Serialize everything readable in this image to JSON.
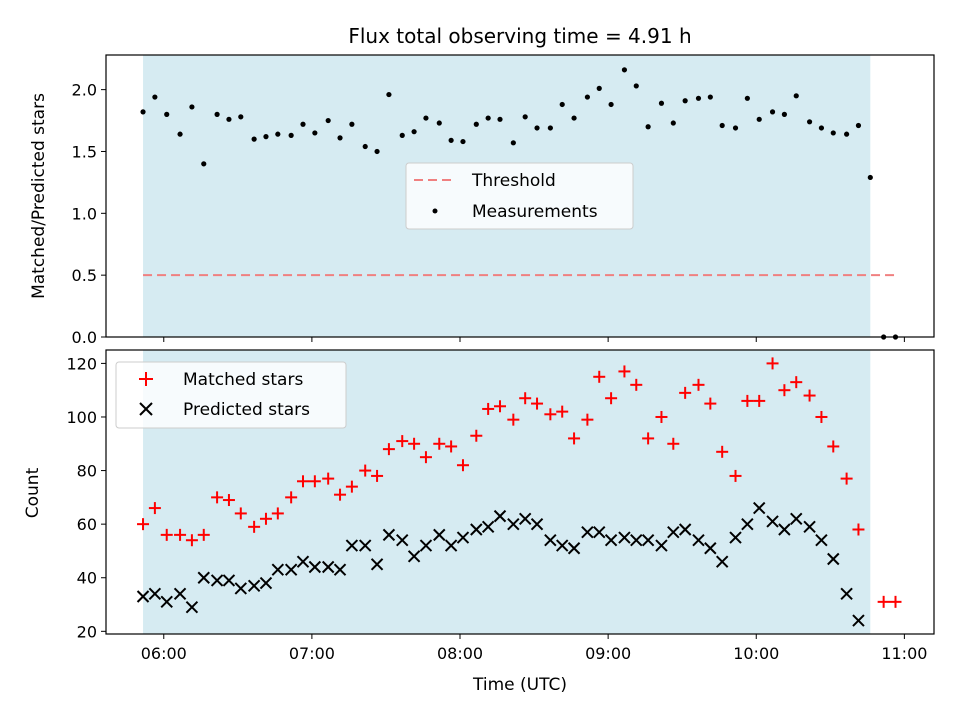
{
  "chart_data": {
    "title": "Flux total observing time = 4.91 h",
    "xlabel": "Time (UTC)",
    "x_unit": "hours UTC",
    "xlim": [
      5.61,
      11.2
    ],
    "x_ticks": [
      6,
      7,
      8,
      9,
      10,
      11
    ],
    "x_tick_labels": [
      "06:00",
      "07:00",
      "08:00",
      "09:00",
      "10:00",
      "11:00"
    ],
    "observing_window": [
      5.86,
      10.77
    ],
    "colors": {
      "shade": "#add8e6",
      "threshold": "#f08080",
      "measurements": "#000000",
      "matched": "#ff0000",
      "predicted": "#000000"
    },
    "panels": [
      {
        "type": "scatter",
        "ylabel": "Matched/Predicted stars",
        "ylim": [
          0.0,
          2.28
        ],
        "y_ticks": [
          0.0,
          0.5,
          1.0,
          1.5,
          2.0
        ],
        "y_tick_labels": [
          "0.0",
          "0.5",
          "1.0",
          "1.5",
          "2.0"
        ],
        "legend_position": "center",
        "legend": [
          "Threshold",
          "Measurements"
        ],
        "threshold": {
          "name": "Threshold",
          "value": 0.5,
          "x_range": [
            5.86,
            10.95
          ]
        },
        "measurements": {
          "name": "Measurements",
          "x": [
            5.86,
            5.94,
            6.02,
            6.11,
            6.19,
            6.27,
            6.36,
            6.44,
            6.52,
            6.61,
            6.69,
            6.77,
            6.86,
            6.94,
            7.02,
            7.11,
            7.19,
            7.27,
            7.36,
            7.44,
            7.52,
            7.61,
            7.69,
            7.77,
            7.86,
            7.94,
            8.02,
            8.11,
            8.19,
            8.27,
            8.36,
            8.44,
            8.52,
            8.61,
            8.69,
            8.77,
            8.86,
            8.94,
            9.02,
            9.11,
            9.19,
            9.27,
            9.36,
            9.44,
            9.52,
            9.61,
            9.69,
            9.77,
            9.86,
            9.94,
            10.02,
            10.11,
            10.19,
            10.27,
            10.36,
            10.44,
            10.52,
            10.61,
            10.69,
            10.77,
            10.86,
            10.94
          ],
          "y": [
            1.82,
            1.94,
            1.8,
            1.64,
            1.86,
            1.4,
            1.8,
            1.76,
            1.78,
            1.6,
            1.62,
            1.64,
            1.63,
            1.72,
            1.65,
            1.75,
            1.61,
            1.72,
            1.54,
            1.5,
            1.96,
            1.63,
            1.66,
            1.77,
            1.73,
            1.59,
            1.58,
            1.72,
            1.77,
            1.76,
            1.57,
            1.78,
            1.69,
            1.69,
            1.88,
            1.77,
            1.94,
            2.01,
            1.88,
            2.16,
            2.03,
            1.7,
            1.89,
            1.73,
            1.91,
            1.93,
            1.94,
            1.71,
            1.69,
            1.93,
            1.76,
            1.82,
            1.8,
            1.95,
            1.74,
            1.69,
            1.65,
            1.64,
            1.71,
            1.29,
            0.0,
            0.0
          ]
        }
      },
      {
        "type": "scatter",
        "ylabel": "Count",
        "ylim": [
          19,
          125
        ],
        "y_ticks": [
          20,
          40,
          60,
          80,
          100,
          120
        ],
        "y_tick_labels": [
          "20",
          "40",
          "60",
          "80",
          "100",
          "120"
        ],
        "legend_position": "upper-left",
        "legend": [
          "Matched stars",
          "Predicted stars"
        ],
        "series": [
          {
            "name": "Matched stars",
            "marker": "+",
            "x": [
              5.86,
              5.94,
              6.02,
              6.11,
              6.19,
              6.27,
              6.36,
              6.44,
              6.52,
              6.61,
              6.69,
              6.77,
              6.86,
              6.94,
              7.02,
              7.11,
              7.19,
              7.27,
              7.36,
              7.44,
              7.52,
              7.61,
              7.69,
              7.77,
              7.86,
              7.94,
              8.02,
              8.11,
              8.19,
              8.27,
              8.36,
              8.44,
              8.52,
              8.61,
              8.69,
              8.77,
              8.86,
              8.94,
              9.02,
              9.11,
              9.19,
              9.27,
              9.36,
              9.44,
              9.52,
              9.61,
              9.69,
              9.77,
              9.86,
              9.94,
              10.02,
              10.11,
              10.19,
              10.27,
              10.36,
              10.44,
              10.52,
              10.61,
              10.69,
              10.77,
              10.86,
              10.94
            ],
            "y": [
              60,
              66,
              56,
              56,
              54,
              56,
              70,
              69,
              64,
              59,
              62,
              64,
              70,
              76,
              76,
              77,
              71,
              74,
              80,
              78,
              88,
              91,
              90,
              85,
              90,
              89,
              82,
              93,
              103,
              104,
              99,
              107,
              105,
              101,
              102,
              92,
              99,
              115,
              107,
              117,
              112,
              92,
              100,
              90,
              109,
              112,
              105,
              87,
              78,
              106,
              106,
              120,
              110,
              113,
              108,
              100,
              89,
              77,
              58,
              null,
              31,
              31
            ],
            "y_tail": [
              31
            ]
          },
          {
            "name": "Predicted stars",
            "marker": "x",
            "x": [
              5.86,
              5.94,
              6.02,
              6.11,
              6.19,
              6.27,
              6.36,
              6.44,
              6.52,
              6.61,
              6.69,
              6.77,
              6.86,
              6.94,
              7.02,
              7.11,
              7.19,
              7.27,
              7.36,
              7.44,
              7.52,
              7.61,
              7.69,
              7.77,
              7.86,
              7.94,
              8.02,
              8.11,
              8.19,
              8.27,
              8.36,
              8.44,
              8.52,
              8.61,
              8.69,
              8.77,
              8.86,
              8.94,
              9.02,
              9.11,
              9.19,
              9.27,
              9.36,
              9.44,
              9.52,
              9.61,
              9.69,
              9.77,
              9.86,
              9.94,
              10.02,
              10.11,
              10.19,
              10.27,
              10.36,
              10.44,
              10.52,
              10.61,
              10.69,
              10.77
            ],
            "y": [
              33,
              34,
              31,
              34,
              29,
              40,
              39,
              39,
              36,
              37,
              38,
              43,
              43,
              46,
              44,
              44,
              43,
              52,
              52,
              45,
              56,
              54,
              48,
              52,
              56,
              52,
              55,
              58,
              59,
              63,
              60,
              62,
              60,
              54,
              52,
              51,
              57,
              57,
              54,
              55,
              54,
              54,
              52,
              57,
              58,
              54,
              51,
              46,
              55,
              60,
              66,
              61,
              58,
              62,
              59,
              54,
              47,
              34,
              24,
              null
            ]
          }
        ]
      }
    ]
  }
}
